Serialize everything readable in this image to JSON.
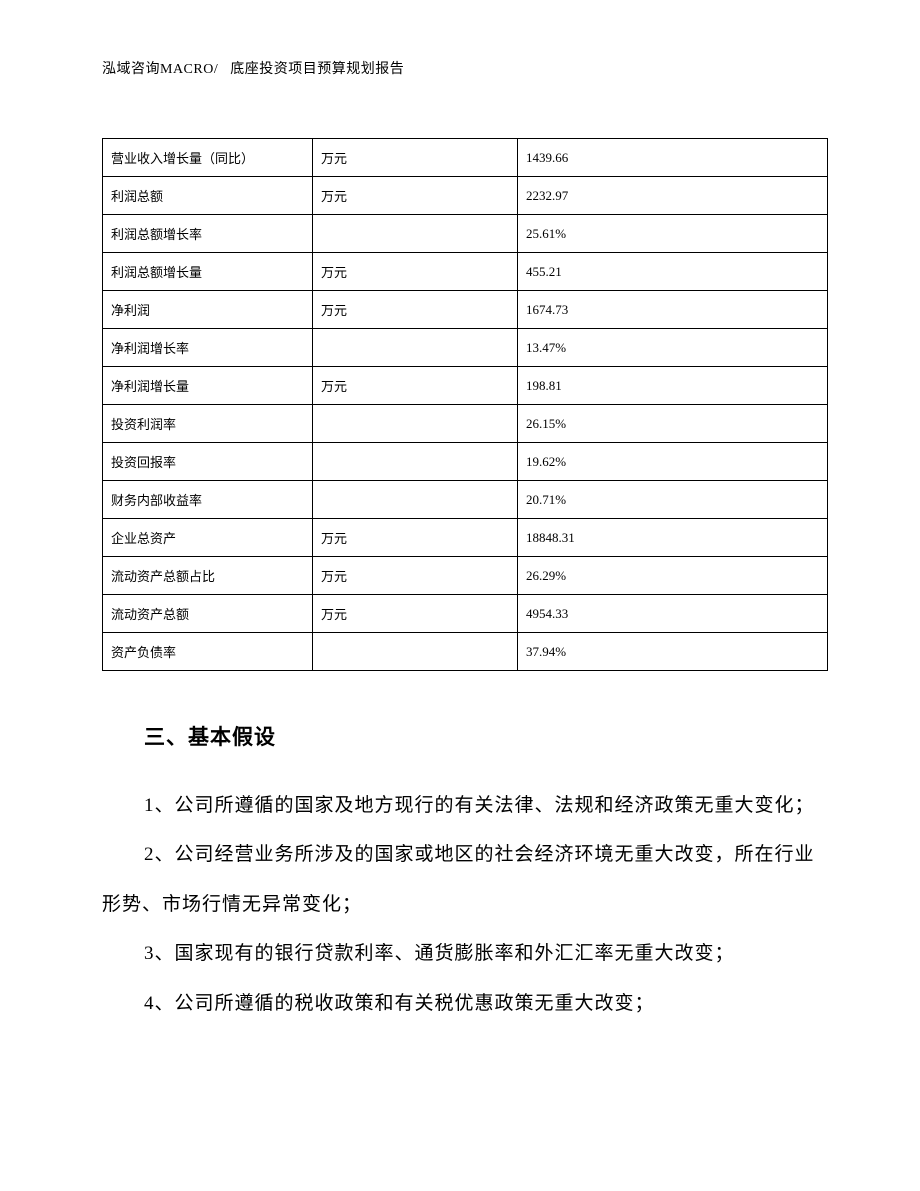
{
  "header": {
    "company": "泓域咨询MACRO/",
    "title": "底座投资项目预算规划报告"
  },
  "table": {
    "columns_widths": [
      210,
      205,
      300
    ],
    "border_color": "#000000",
    "cell_fontsize": 13,
    "text_color": "#000000",
    "rows": [
      {
        "label": "营业收入增长量（同比）",
        "unit": "万元",
        "value": "1439.66"
      },
      {
        "label": "利润总额",
        "unit": "万元",
        "value": "2232.97"
      },
      {
        "label": "利润总额增长率",
        "unit": "",
        "value": "25.61%"
      },
      {
        "label": "利润总额增长量",
        "unit": "万元",
        "value": "455.21"
      },
      {
        "label": "净利润",
        "unit": "万元",
        "value": "1674.73"
      },
      {
        "label": "净利润增长率",
        "unit": "",
        "value": "13.47%"
      },
      {
        "label": "净利润增长量",
        "unit": "万元",
        "value": "198.81"
      },
      {
        "label": "投资利润率",
        "unit": "",
        "value": "26.15%"
      },
      {
        "label": "投资回报率",
        "unit": "",
        "value": "19.62%"
      },
      {
        "label": "财务内部收益率",
        "unit": "",
        "value": "20.71%"
      },
      {
        "label": "企业总资产",
        "unit": "万元",
        "value": "18848.31"
      },
      {
        "label": "流动资产总额占比",
        "unit": "万元",
        "value": "26.29%"
      },
      {
        "label": "流动资产总额",
        "unit": "万元",
        "value": "4954.33"
      },
      {
        "label": "资产负债率",
        "unit": "",
        "value": "37.94%"
      }
    ]
  },
  "section": {
    "title": "三、基本假设",
    "items": [
      "1、公司所遵循的国家及地方现行的有关法律、法规和经济政策无重大变化；",
      "2、公司经营业务所涉及的国家或地区的社会经济环境无重大改变，所在行业形势、市场行情无异常变化；",
      "3、国家现有的银行贷款利率、通货膨胀率和外汇汇率无重大改变；",
      "4、公司所遵循的税收政策和有关税优惠政策无重大改变；"
    ]
  },
  "style": {
    "background_color": "#ffffff",
    "body_fontsize": 19,
    "title_fontsize": 21,
    "header_fontsize": 14,
    "line_height": 2.6,
    "text_indent": 42
  }
}
